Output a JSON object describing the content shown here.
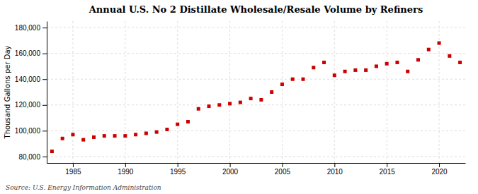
{
  "chart_data": {
    "type": "scatter",
    "title": "Annual U.S. No 2 Distillate Wholesale/Resale Volume by Refiners",
    "ylabel": "Thousand Gallons per Day",
    "source": "Source: U.S. Energy Information Administration",
    "color": "#cc0000",
    "marker": "square",
    "grid": true,
    "xlim": [
      1982.5,
      2022.5
    ],
    "xticks": [
      1985,
      1990,
      1995,
      2000,
      2005,
      2010,
      2015,
      2020
    ],
    "ylim": [
      75000,
      185000
    ],
    "yticks": [
      {
        "value": 80000,
        "label": "80,000"
      },
      {
        "value": 100000,
        "label": "100,000"
      },
      {
        "value": 120000,
        "label": "120,000"
      },
      {
        "value": 140000,
        "label": "140,000"
      },
      {
        "value": 160000,
        "label": "160,000"
      },
      {
        "value": 180000,
        "label": "180,000"
      }
    ],
    "x": [
      1983,
      1984,
      1985,
      1986,
      1987,
      1988,
      1989,
      1990,
      1991,
      1992,
      1993,
      1994,
      1995,
      1996,
      1997,
      1998,
      1999,
      2000,
      2001,
      2002,
      2003,
      2004,
      2005,
      2006,
      2007,
      2008,
      2009,
      2010,
      2011,
      2012,
      2013,
      2014,
      2015,
      2016,
      2017,
      2018,
      2019,
      2020,
      2021,
      2022
    ],
    "values": [
      84000,
      94000,
      97000,
      93000,
      95000,
      96000,
      96000,
      96000,
      97000,
      98000,
      99000,
      101000,
      105000,
      107000,
      117000,
      119000,
      120000,
      121000,
      122000,
      125000,
      124000,
      130000,
      136000,
      140000,
      140000,
      149000,
      153000,
      143000,
      146000,
      147000,
      147000,
      150000,
      152000,
      153000,
      146000,
      155000,
      163000,
      168000,
      158000,
      153000
    ]
  }
}
